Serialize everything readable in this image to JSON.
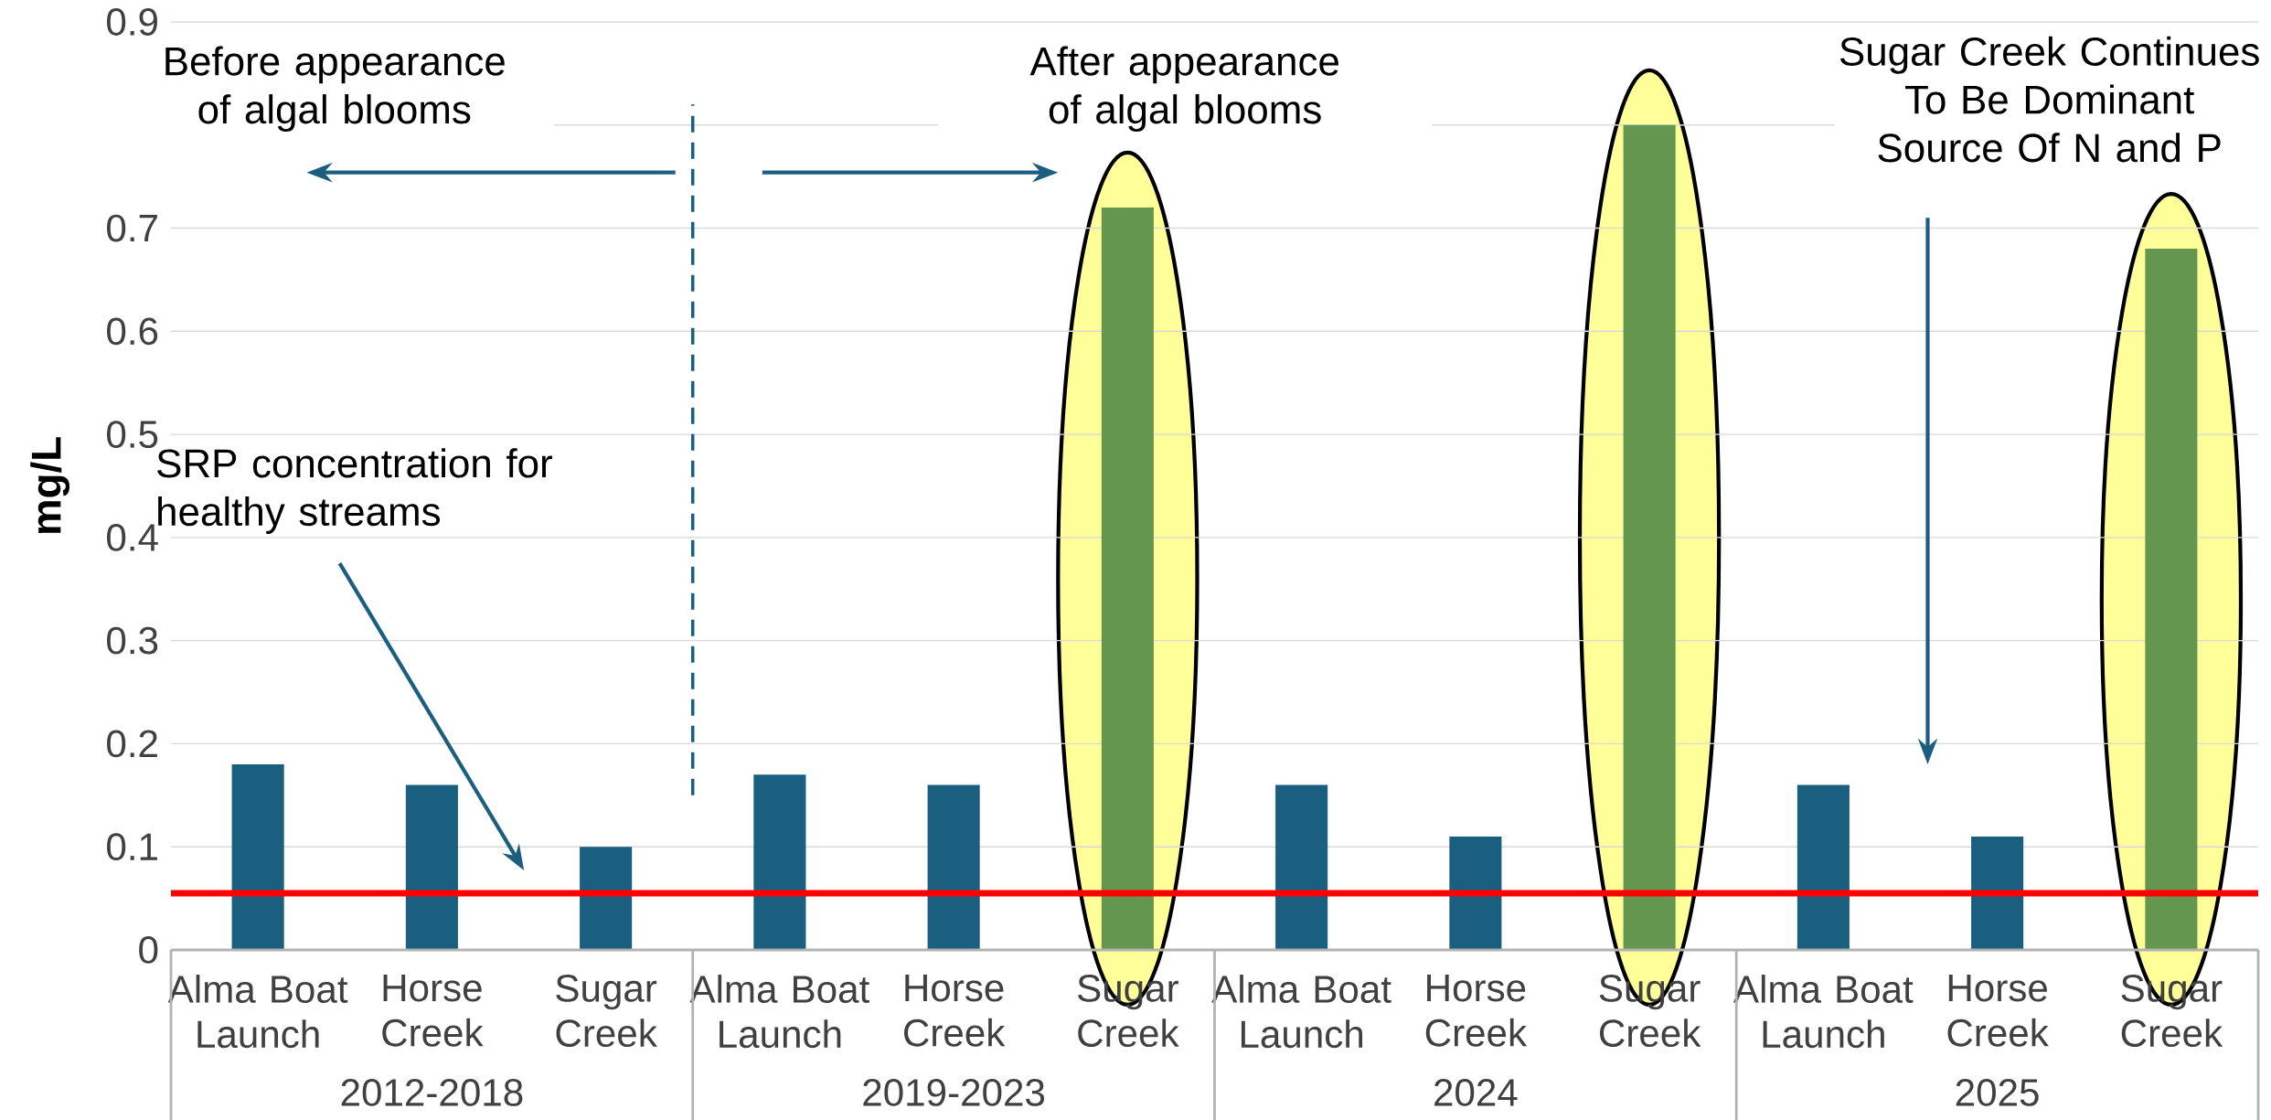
{
  "chart_data": {
    "type": "bar",
    "ylabel": "mg/L",
    "categories": [
      "Alma Boat Launch",
      "Horse Creek",
      "Sugar Creek",
      "Alma Boat Launch",
      "Horse Creek",
      "Sugar Creek",
      "Alma Boat Launch",
      "Horse Creek",
      "Sugar Creek",
      "Alma Boat Launch",
      "Horse Creek",
      "Sugar Creek"
    ],
    "values": [
      0.18,
      0.16,
      0.1,
      0.17,
      0.16,
      0.72,
      0.16,
      0.11,
      0.8,
      0.16,
      0.11,
      0.68
    ],
    "colors": [
      "#1a5e80",
      "#1a5e80",
      "#1a5e80",
      "#1a5e80",
      "#1a5e80",
      "#64964f",
      "#1a5e80",
      "#1a5e80",
      "#64964f",
      "#1a5e80",
      "#1a5e80",
      "#64964f"
    ],
    "ylim": [
      0,
      0.9
    ],
    "yticks": [
      0,
      0.1,
      0.2,
      0.3,
      0.4,
      0.5,
      0.6,
      0.7,
      {
        "value": 0.8,
        "label": null
      },
      0.9
    ],
    "grid": "y",
    "ref_lines": [
      {
        "axis": "y",
        "value": 0.055,
        "color": "#ff0000",
        "line_style": "solid"
      }
    ],
    "annotations": [
      "2012-2018",
      "2019-2023",
      "2024",
      "2025",
      "Before appearance of algal blooms",
      "After appearance of algal blooms",
      "Sugar Creek Continues To Be Dominant Source Of N and P",
      "SRP concentration for healthy streams"
    ]
  }
}
